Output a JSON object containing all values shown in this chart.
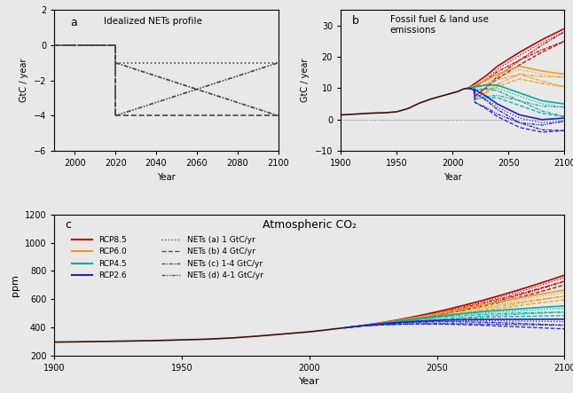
{
  "title_a": "Idealized NETs profile",
  "title_b": "Fossil fuel & land use\nemissions",
  "title_c": "Atmospheric CO₂",
  "label_a": "a",
  "label_b": "b",
  "label_c": "c",
  "ylabel_ab": "GtC / year",
  "ylabel_c": "ppm",
  "xlabel": "Year",
  "colors": {
    "rcp85": "#C00000",
    "rcp60": "#E8A020",
    "rcp45": "#00B0A0",
    "rcp26": "#2020C8"
  },
  "bg_color": "#f0f0f0",
  "legend_rcps": [
    "RCP8.5",
    "RCP6.0",
    "RCP4.5",
    "RCP2.6"
  ],
  "legend_nets": [
    "NETs (a) 1 GtC/yr",
    "NETs (b) 4 GtC/yr",
    "NETs (c) 1-4 GtC/yr",
    "NETs (d) 4-1 GtC/yr"
  ]
}
